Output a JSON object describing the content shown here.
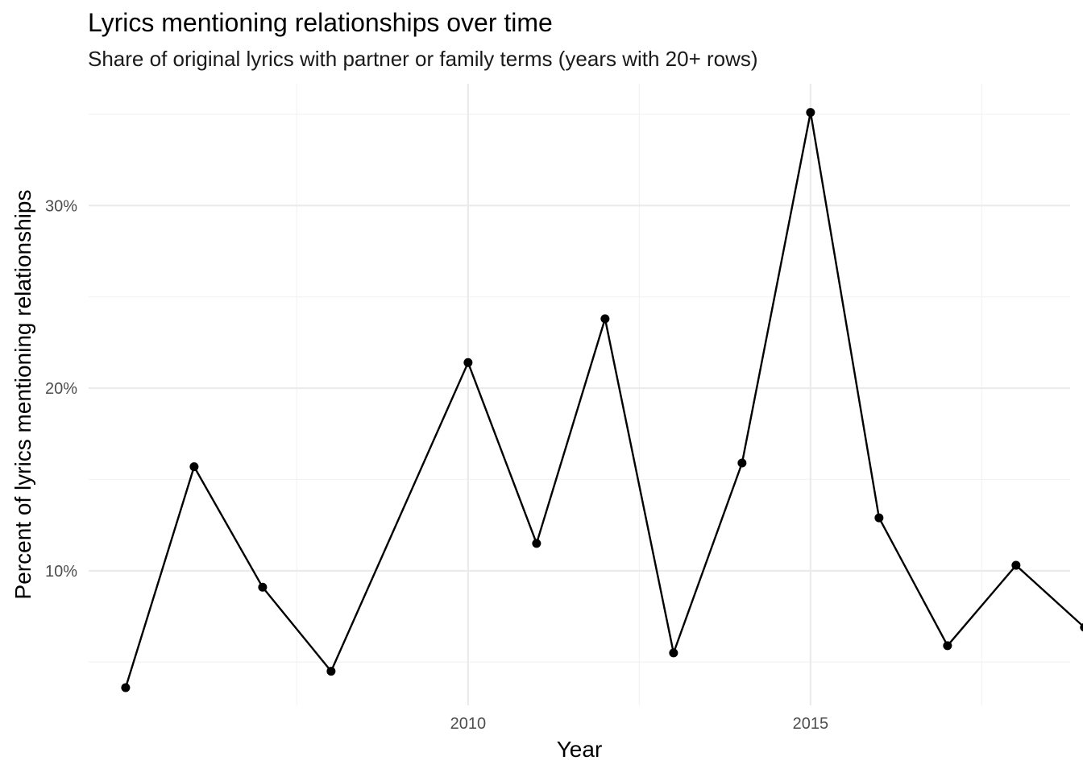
{
  "chart_data": {
    "type": "line",
    "title": "Lyrics mentioning relationships over time",
    "subtitle": "Share of original lyrics with partner or family terms (years with 20+ rows)",
    "xlabel": "Year",
    "ylabel": "Percent of lyrics mentioning relationships",
    "x_ticks": [
      2010,
      2015
    ],
    "y_ticks": [
      10,
      20,
      30
    ],
    "y_tick_labels": [
      "10%",
      "20%",
      "30%"
    ],
    "xlim": [
      2004.46,
      2018.79
    ],
    "ylim": [
      2.63,
      36.67
    ],
    "grid": true,
    "legend": "none",
    "series": [
      {
        "x": [
          2005,
          2006,
          2007,
          2008,
          2010,
          2011,
          2012,
          2013,
          2014,
          2015,
          2016,
          2017,
          2018,
          2019
        ],
        "y": [
          3.6,
          15.7,
          9.1,
          4.5,
          21.4,
          11.5,
          23.8,
          5.5,
          15.9,
          35.1,
          12.9,
          5.9,
          10.3,
          6.9
        ]
      }
    ],
    "colors": {
      "line": "#000000",
      "grid_major": "#ebebeb",
      "grid_minor": "#f3f3f3"
    }
  }
}
